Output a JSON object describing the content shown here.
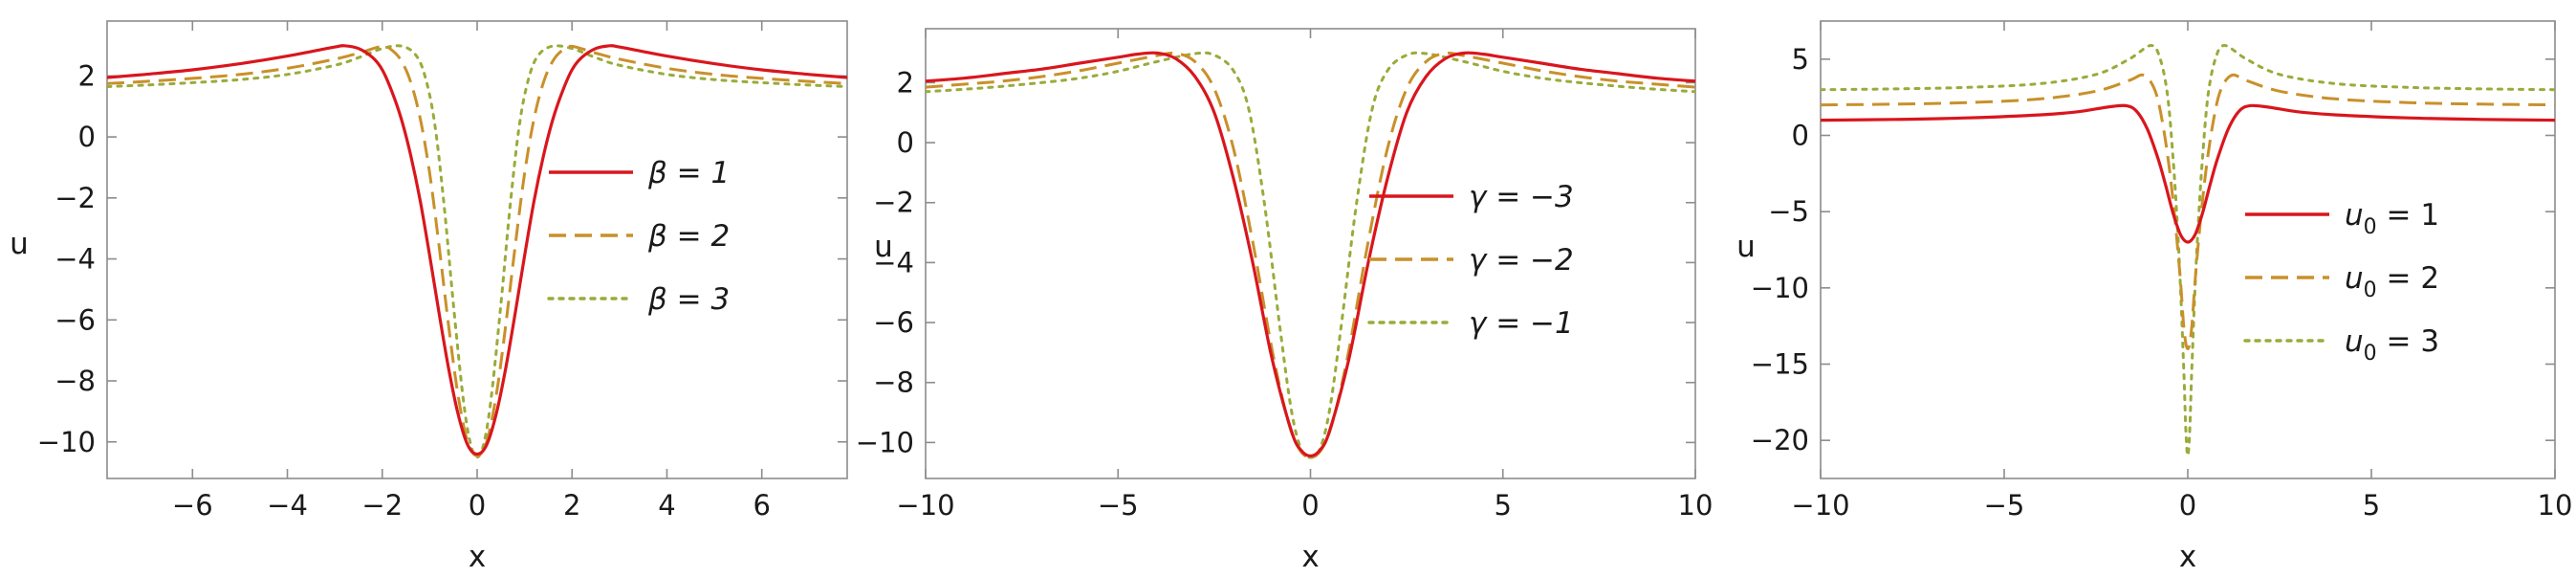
{
  "chart_data": [
    {
      "type": "line",
      "xlabel": "x",
      "ylabel": "u",
      "xlim": [
        -7.8,
        7.8
      ],
      "ylim": [
        -11.2,
        3.8
      ],
      "xticks": [
        -6,
        -4,
        -2,
        0,
        2,
        4,
        6
      ],
      "xtick_labels": [
        "−6",
        "−4",
        "−2",
        "0",
        "2",
        "4",
        "6"
      ],
      "yticks": [
        2,
        0,
        -2,
        -4,
        -6,
        -8,
        -10
      ],
      "ytick_labels": [
        "2",
        "0",
        "−2",
        "−4",
        "−6",
        "−8",
        "−10"
      ],
      "legend_position": "right",
      "grid": false,
      "series": [
        {
          "name": "β = 1",
          "style": "solid",
          "color": "#d9161d",
          "x": [
            -7.8,
            -7,
            -6,
            -5,
            -4,
            -3.5,
            -3,
            -2.8,
            -2.5,
            -2.2,
            -2,
            -1.8,
            -1.6,
            -1.4,
            -1.2,
            -1,
            -0.8,
            -0.6,
            -0.4,
            -0.2,
            0,
            0.2,
            0.4,
            0.6,
            0.8,
            1,
            1.2,
            1.4,
            1.6,
            1.8,
            2,
            2.2,
            2.5,
            2.8,
            3,
            3.5,
            4,
            5,
            6,
            7,
            7.8
          ],
          "y": [
            1.95,
            2.05,
            2.2,
            2.4,
            2.65,
            2.8,
            2.95,
            2.99,
            2.9,
            2.6,
            2.2,
            1.5,
            0.6,
            -0.6,
            -2.1,
            -3.9,
            -5.8,
            -7.6,
            -9.1,
            -10.1,
            -10.4,
            -10.1,
            -9.1,
            -7.6,
            -5.8,
            -3.9,
            -2.1,
            -0.6,
            0.6,
            1.5,
            2.2,
            2.6,
            2.9,
            2.99,
            2.95,
            2.8,
            2.65,
            2.4,
            2.2,
            2.05,
            1.95
          ]
        },
        {
          "name": "β = 2",
          "style": "dashed",
          "color": "#c9902a",
          "x": [
            -7.8,
            -7,
            -6,
            -5,
            -4,
            -3,
            -2.5,
            -2,
            -1.8,
            -1.6,
            -1.4,
            -1.2,
            -1,
            -0.8,
            -0.6,
            -0.4,
            -0.2,
            0,
            0.2,
            0.4,
            0.6,
            0.8,
            1,
            1.2,
            1.4,
            1.6,
            1.8,
            2,
            2.5,
            3,
            4,
            5,
            6,
            7,
            7.8
          ],
          "y": [
            1.75,
            1.82,
            1.92,
            2.05,
            2.25,
            2.55,
            2.75,
            2.97,
            2.85,
            2.5,
            1.8,
            0.6,
            -1.2,
            -3.6,
            -6.2,
            -8.5,
            -10.0,
            -10.45,
            -10.0,
            -8.5,
            -6.2,
            -3.6,
            -1.2,
            0.6,
            1.8,
            2.5,
            2.85,
            2.97,
            2.75,
            2.55,
            2.25,
            2.05,
            1.92,
            1.82,
            1.75
          ]
        },
        {
          "name": "β = 3",
          "style": "dotted",
          "color": "#9aab3a",
          "x": [
            -7.8,
            -7,
            -6,
            -5,
            -4,
            -3,
            -2.5,
            -2,
            -1.6,
            -1.3,
            -1.1,
            -0.9,
            -0.7,
            -0.5,
            -0.3,
            -0.15,
            0,
            0.15,
            0.3,
            0.5,
            0.7,
            0.9,
            1.1,
            1.3,
            1.6,
            2,
            2.5,
            3,
            4,
            5,
            6,
            7,
            7.8
          ],
          "y": [
            1.65,
            1.7,
            1.78,
            1.88,
            2.05,
            2.35,
            2.6,
            2.9,
            2.98,
            2.7,
            2.0,
            0.5,
            -2.2,
            -5.5,
            -8.5,
            -10.0,
            -10.5,
            -10.0,
            -8.5,
            -5.5,
            -2.2,
            0.5,
            2.0,
            2.7,
            2.98,
            2.9,
            2.6,
            2.35,
            2.05,
            1.88,
            1.78,
            1.7,
            1.65
          ]
        }
      ],
      "legend": [
        "β = 1",
        "β = 2",
        "β = 3"
      ]
    },
    {
      "type": "line",
      "xlabel": "x",
      "ylabel": "u",
      "xlim": [
        -10,
        10
      ],
      "ylim": [
        -11.2,
        3.8
      ],
      "xticks": [
        -10,
        -5,
        0,
        5,
        10
      ],
      "xtick_labels": [
        "−10",
        "−5",
        "0",
        "5",
        "10"
      ],
      "yticks": [
        2,
        0,
        -2,
        -4,
        -6,
        -8,
        -10
      ],
      "ytick_labels": [
        "2",
        "0",
        "−2",
        "−4",
        "−6",
        "−8",
        "−10"
      ],
      "legend_position": "right",
      "grid": false,
      "series": [
        {
          "name": "γ = −3",
          "style": "solid",
          "color": "#d9161d",
          "x": [
            -10,
            -9,
            -8,
            -7,
            -6,
            -5,
            -4.5,
            -4,
            -3.5,
            -3,
            -2.5,
            -2,
            -1.5,
            -1,
            -0.5,
            -0.25,
            0,
            0.25,
            0.5,
            1,
            1.5,
            2,
            2.5,
            3,
            3.5,
            4,
            4.5,
            5,
            6,
            7,
            8,
            9,
            10
          ],
          "y": [
            2.05,
            2.15,
            2.3,
            2.45,
            2.65,
            2.85,
            2.95,
            2.99,
            2.8,
            2.2,
            1.0,
            -1.2,
            -4.0,
            -7.2,
            -9.6,
            -10.25,
            -10.45,
            -10.25,
            -9.6,
            -7.2,
            -4.0,
            -1.2,
            1.0,
            2.2,
            2.8,
            2.99,
            2.95,
            2.85,
            2.65,
            2.45,
            2.3,
            2.15,
            2.05
          ]
        },
        {
          "name": "γ = −2",
          "style": "dashed",
          "color": "#c9902a",
          "x": [
            -10,
            -9,
            -8,
            -7,
            -6,
            -5,
            -4,
            -3.5,
            -3,
            -2.5,
            -2,
            -1.5,
            -1,
            -0.6,
            -0.3,
            0,
            0.3,
            0.6,
            1,
            1.5,
            2,
            2.5,
            3,
            3.5,
            4,
            5,
            6,
            7,
            8,
            9,
            10
          ],
          "y": [
            1.85,
            1.95,
            2.05,
            2.2,
            2.4,
            2.65,
            2.9,
            2.98,
            2.7,
            1.8,
            -0.2,
            -3.3,
            -6.9,
            -9.2,
            -10.2,
            -10.5,
            -10.2,
            -9.2,
            -6.9,
            -3.3,
            -0.2,
            1.8,
            2.7,
            2.98,
            2.9,
            2.65,
            2.4,
            2.2,
            2.05,
            1.95,
            1.85
          ]
        },
        {
          "name": "γ = −1",
          "style": "dotted",
          "color": "#9aab3a",
          "x": [
            -10,
            -9,
            -8,
            -7,
            -6,
            -5,
            -4,
            -3,
            -2.5,
            -2,
            -1.6,
            -1.2,
            -0.8,
            -0.5,
            -0.25,
            0,
            0.25,
            0.5,
            0.8,
            1.2,
            1.6,
            2,
            2.5,
            3,
            4,
            5,
            6,
            7,
            8,
            9,
            10
          ],
          "y": [
            1.7,
            1.78,
            1.88,
            2.0,
            2.15,
            2.38,
            2.7,
            2.97,
            2.92,
            2.4,
            1.1,
            -2.0,
            -6.1,
            -8.9,
            -10.2,
            -10.5,
            -10.2,
            -8.9,
            -6.1,
            -2.0,
            1.1,
            2.4,
            2.92,
            2.97,
            2.7,
            2.38,
            2.15,
            2.0,
            1.88,
            1.78,
            1.7
          ]
        }
      ],
      "legend": [
        "γ = −3",
        "γ = −2",
        "γ = −1"
      ]
    },
    {
      "type": "line",
      "xlabel": "x",
      "ylabel": "u",
      "xlim": [
        -10,
        10
      ],
      "ylim": [
        -22.5,
        7.5
      ],
      "xticks": [
        -10,
        -5,
        0,
        5,
        10
      ],
      "xtick_labels": [
        "−10",
        "−5",
        "0",
        "5",
        "10"
      ],
      "yticks": [
        5,
        0,
        -5,
        -10,
        -15,
        -20
      ],
      "ytick_labels": [
        "5",
        "0",
        "−5",
        "−10",
        "−15",
        "−20"
      ],
      "legend_position": "right",
      "grid": false,
      "series": [
        {
          "name": "u0 = 1",
          "legend_base": "u",
          "legend_sub": "0",
          "legend_rest": " = 1",
          "style": "solid",
          "color": "#d9161d",
          "x": [
            -10,
            -8,
            -6,
            -4,
            -3,
            -2.2,
            -1.7,
            -1.4,
            -1.1,
            -0.8,
            -0.6,
            -0.4,
            -0.2,
            0,
            0.2,
            0.4,
            0.6,
            0.8,
            1.1,
            1.4,
            1.7,
            2.2,
            3,
            4,
            6,
            8,
            10
          ],
          "y": [
            1.0,
            1.05,
            1.15,
            1.35,
            1.55,
            1.85,
            1.95,
            1.6,
            0.4,
            -1.6,
            -3.3,
            -5.1,
            -6.5,
            -7.0,
            -6.5,
            -5.1,
            -3.3,
            -1.6,
            0.4,
            1.6,
            1.95,
            1.85,
            1.55,
            1.35,
            1.15,
            1.05,
            1.0
          ]
        },
        {
          "name": "u0 = 2",
          "legend_base": "u",
          "legend_sub": "0",
          "legend_rest": " = 2",
          "style": "dashed",
          "color": "#c9902a",
          "x": [
            -10,
            -8,
            -6,
            -4,
            -2.5,
            -1.6,
            -1.2,
            -0.9,
            -0.7,
            -0.5,
            -0.35,
            -0.2,
            -0.1,
            0,
            0.1,
            0.2,
            0.35,
            0.5,
            0.7,
            0.9,
            1.2,
            1.6,
            2.5,
            4,
            6,
            8,
            10
          ],
          "y": [
            2.0,
            2.05,
            2.15,
            2.4,
            2.9,
            3.6,
            3.95,
            3.0,
            1.0,
            -2.2,
            -5.5,
            -9.5,
            -12.8,
            -14.0,
            -12.8,
            -9.5,
            -5.5,
            -2.2,
            1.0,
            3.0,
            3.95,
            3.6,
            2.9,
            2.4,
            2.15,
            2.05,
            2.0
          ]
        },
        {
          "name": "u0 = 3",
          "legend_base": "u",
          "legend_sub": "0",
          "legend_rest": " = 3",
          "style": "dotted",
          "color": "#9aab3a",
          "x": [
            -10,
            -8,
            -6,
            -4,
            -2.5,
            -1.6,
            -1.0,
            -0.75,
            -0.55,
            -0.4,
            -0.28,
            -0.18,
            -0.1,
            -0.05,
            0,
            0.05,
            0.1,
            0.18,
            0.28,
            0.4,
            0.55,
            0.75,
            1.0,
            1.6,
            2.5,
            4,
            6,
            8,
            10
          ],
          "y": [
            3.0,
            3.05,
            3.15,
            3.4,
            4.0,
            5.0,
            5.9,
            5.0,
            2.6,
            -1.5,
            -6.0,
            -11.0,
            -16.0,
            -19.5,
            -21.0,
            -19.5,
            -16.0,
            -11.0,
            -6.0,
            -1.5,
            2.6,
            5.0,
            5.9,
            5.0,
            4.0,
            3.4,
            3.15,
            3.05,
            3.0
          ]
        }
      ],
      "legend": [
        "u0 = 1",
        "u0 = 2",
        "u0 = 3"
      ]
    }
  ]
}
